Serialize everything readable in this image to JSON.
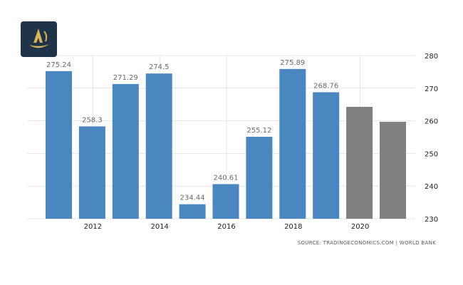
{
  "logo": {
    "name": "logo-icon"
  },
  "source": "SOURCE: TRADINGECONOMICS.COM  |  WORLD BANK",
  "colors": {
    "actual": "#4a86bf",
    "forecast": "#808080",
    "grid": "#e6e6e6"
  },
  "chart_data": {
    "type": "bar",
    "title": "",
    "xlabel": "",
    "ylabel": "",
    "x": [
      2011,
      2012,
      2013,
      2014,
      2015,
      2016,
      2017,
      2018,
      2019,
      2020,
      2021
    ],
    "values": [
      275.24,
      258.3,
      271.29,
      274.5,
      234.44,
      240.61,
      255.12,
      275.89,
      268.76,
      264.3,
      259.7
    ],
    "data_labels": [
      "275.24",
      "258.3",
      "271.29",
      "274.5",
      "234.44",
      "240.61",
      "255.12",
      "275.89",
      "268.76",
      "",
      ""
    ],
    "kind": [
      "actual",
      "actual",
      "actual",
      "actual",
      "actual",
      "actual",
      "actual",
      "actual",
      "actual",
      "forecast",
      "forecast"
    ],
    "x_ticks": [
      "2012",
      "2014",
      "2016",
      "2018",
      "2020"
    ],
    "y_ticks": [
      "230",
      "240",
      "250",
      "260",
      "270",
      "280"
    ],
    "ylim": [
      230,
      280
    ],
    "y_axis_side": "right",
    "grid": true
  }
}
